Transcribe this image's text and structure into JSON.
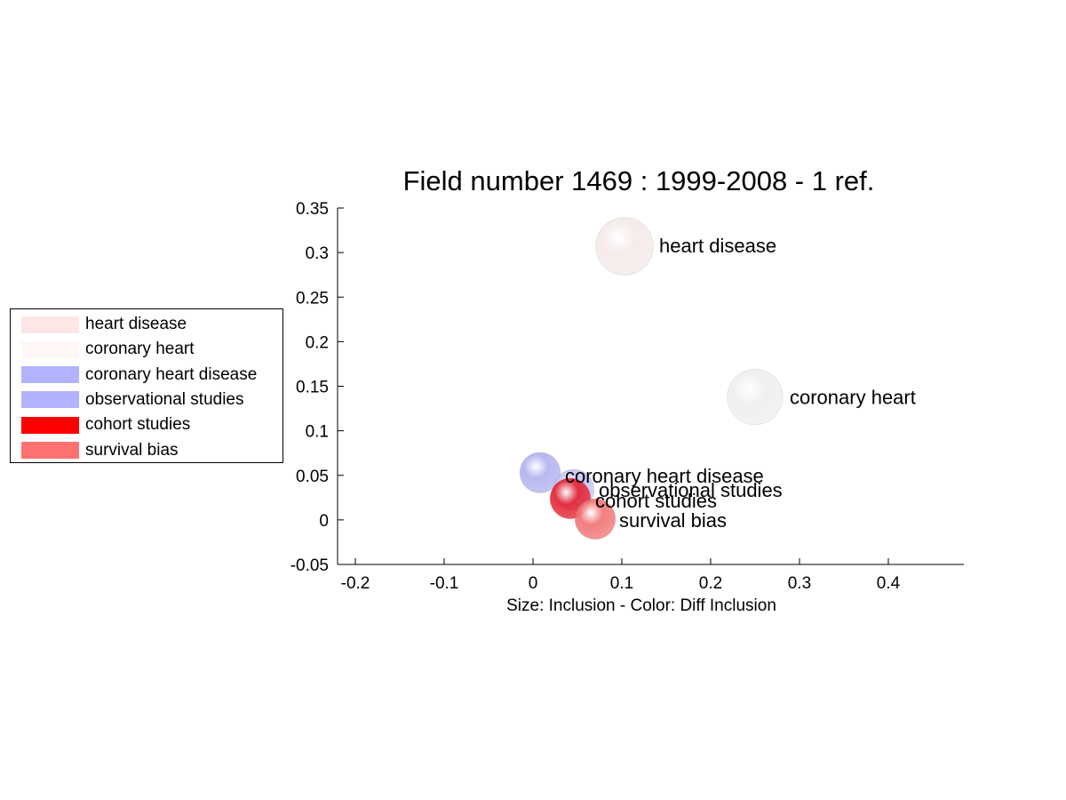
{
  "chart_data": {
    "type": "scatter",
    "title": "Field number 1469 : 1999-2008  - 1 ref.",
    "xlabel": "Size: Inclusion - Color: Diff Inclusion",
    "ylabel": "",
    "xlim": [
      -0.22,
      0.485
    ],
    "ylim": [
      -0.05,
      0.35
    ],
    "xticks": [
      -0.2,
      -0.1,
      0,
      0.1,
      0.2,
      0.3,
      0.4
    ],
    "xtick_labels": [
      "-0.2",
      "-0.1",
      "0",
      "0.1",
      "0.2",
      "0.3",
      "0.4"
    ],
    "yticks": [
      -0.05,
      0,
      0.05,
      0.1,
      0.15,
      0.2,
      0.25,
      0.3,
      0.35
    ],
    "ytick_labels": [
      "-0.05",
      "0",
      "0.05",
      "0.1",
      "0.15",
      "0.2",
      "0.25",
      "0.3",
      "0.35"
    ],
    "grid": false,
    "legend_position": "left",
    "points": [
      {
        "name": "heart disease",
        "x": 0.103,
        "y": 0.307,
        "size": 1.35,
        "color": "#f4e9e9",
        "legend_color": "#fde6e6"
      },
      {
        "name": "coronary heart",
        "x": 0.25,
        "y": 0.138,
        "size": 1.3,
        "color": "#eeeeee",
        "legend_color": "#fff6f6"
      },
      {
        "name": "coronary heart disease",
        "x": 0.008,
        "y": 0.053,
        "size": 0.95,
        "color": "#b0b0ee",
        "legend_color": "#b2b2ff"
      },
      {
        "name": "observational studies",
        "x": 0.046,
        "y": 0.034,
        "size": 0.95,
        "color": "#c2c2f4",
        "legend_color": "#b2b2ff"
      },
      {
        "name": "cohort studies",
        "x": 0.042,
        "y": 0.024,
        "size": 0.95,
        "color": "#e41e2e",
        "legend_color": "#ff0000"
      },
      {
        "name": "survival bias",
        "x": 0.07,
        "y": 0.001,
        "size": 0.95,
        "color": "#f07070",
        "legend_color": "#ff7070"
      }
    ],
    "labels": [
      {
        "text": "heart disease",
        "x": 0.142,
        "y": 0.308
      },
      {
        "text": "coronary heart",
        "x": 0.289,
        "y": 0.138
      },
      {
        "text": "coronary heart disease",
        "x": 0.036,
        "y": 0.05
      },
      {
        "text": "observational studies",
        "x": 0.074,
        "y": 0.034
      },
      {
        "text": "cohort studies",
        "x": 0.07,
        "y": 0.022
      },
      {
        "text": "survival bias",
        "x": 0.097,
        "y": 0.0
      }
    ]
  }
}
